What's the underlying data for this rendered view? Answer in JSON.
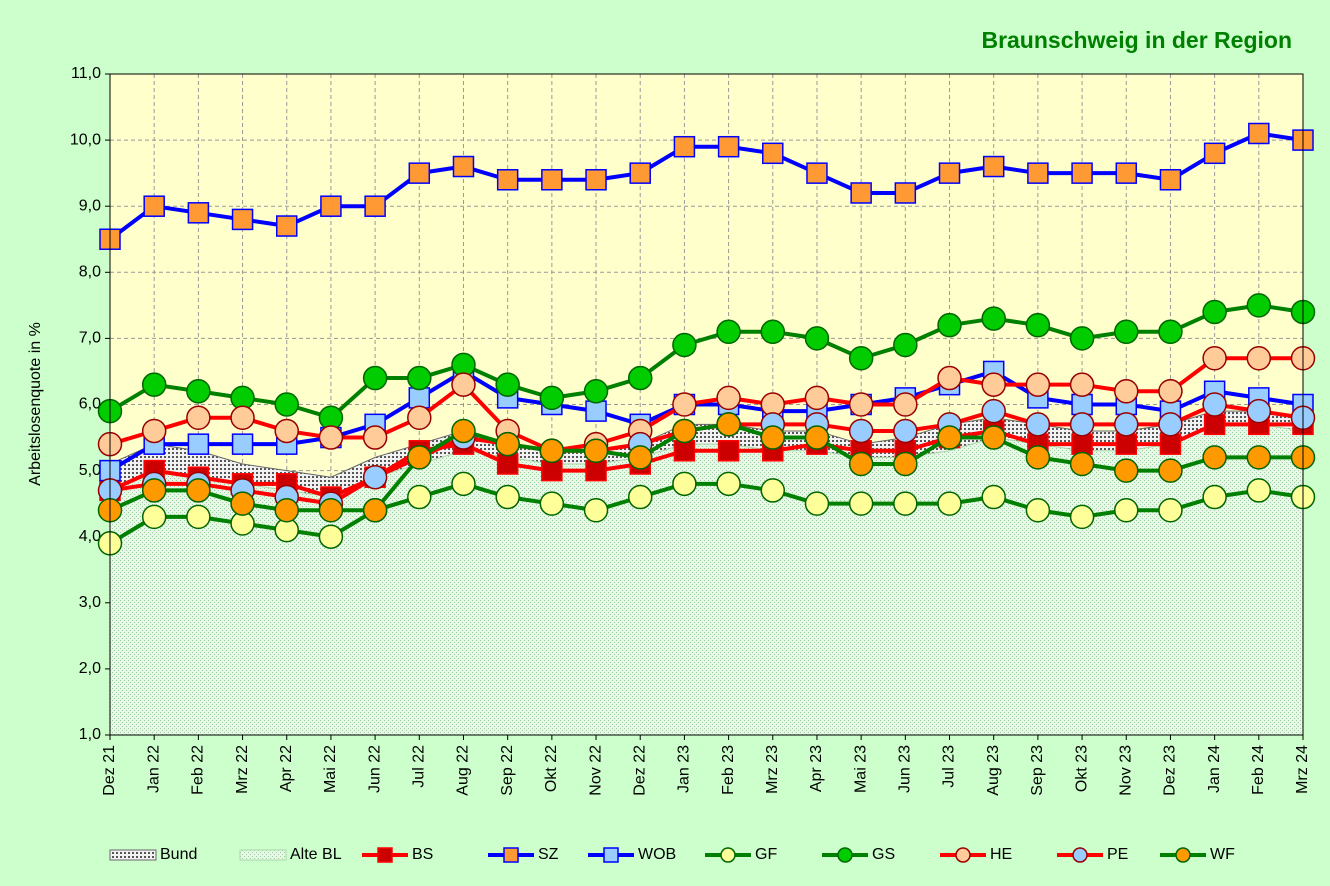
{
  "chart_data": {
    "type": "line",
    "title": "Braunschweig in der Region",
    "ylabel": "Arbeitslosenquote in %",
    "categories": [
      "Dez 21",
      "Jan 22",
      "Feb 22",
      "Mrz 22",
      "Apr 22",
      "Mai 22",
      "Jun 22",
      "Jul 22",
      "Aug 22",
      "Sep 22",
      "Okt 22",
      "Nov 22",
      "Dez 22",
      "Jan 23",
      "Feb 23",
      "Mrz 23",
      "Apr 23",
      "Mai 23",
      "Jun 23",
      "Jul 23",
      "Aug 23",
      "Sep 23",
      "Okt 23",
      "Nov 23",
      "Dez 23",
      "Jan 24",
      "Feb 24",
      "Mrz 24"
    ],
    "ylim": [
      1,
      11
    ],
    "yticks": [
      {
        "value": 1,
        "label": "1,0"
      },
      {
        "value": 2,
        "label": "2,0"
      },
      {
        "value": 3,
        "label": "3,0"
      },
      {
        "value": 4,
        "label": "4,0"
      },
      {
        "value": 5,
        "label": "5,0"
      },
      {
        "value": 6,
        "label": "6,0"
      },
      {
        "value": 7,
        "label": "7,0"
      },
      {
        "value": 8,
        "label": "8,0"
      },
      {
        "value": 9,
        "label": "9,0"
      },
      {
        "value": 10,
        "label": "10,0"
      },
      {
        "value": 11,
        "label": "11,0"
      }
    ],
    "grid": true,
    "legend": "bottom",
    "series": [
      {
        "name": "Bund",
        "kind": "area",
        "color": "#666666",
        "values": [
          5.1,
          5.4,
          5.3,
          5.1,
          5.0,
          4.9,
          5.2,
          5.4,
          5.6,
          5.4,
          5.3,
          5.3,
          5.4,
          5.7,
          5.7,
          5.6,
          5.6,
          5.4,
          5.5,
          5.7,
          5.8,
          5.7,
          5.6,
          5.6,
          5.7,
          5.9,
          5.9,
          5.8
        ]
      },
      {
        "name": "Alte BL",
        "kind": "area",
        "color": "#a8d8a8",
        "values": [
          4.7,
          5.0,
          4.9,
          4.8,
          4.7,
          4.6,
          4.9,
          5.1,
          5.3,
          5.2,
          5.1,
          5.1,
          5.2,
          5.4,
          5.4,
          5.3,
          5.3,
          5.2,
          5.2,
          5.3,
          5.5,
          5.4,
          5.3,
          5.3,
          5.4,
          5.7,
          5.7,
          5.6
        ]
      },
      {
        "name": "BS",
        "kind": "line",
        "marker": "square",
        "color": "#ff0000",
        "marker_color": "#cc0000",
        "values": [
          4.7,
          5.0,
          4.9,
          4.8,
          4.8,
          4.6,
          4.9,
          5.3,
          5.4,
          5.1,
          5.0,
          5.0,
          5.1,
          5.3,
          5.3,
          5.3,
          5.4,
          5.3,
          5.3,
          5.5,
          5.6,
          5.4,
          5.4,
          5.4,
          5.4,
          5.7,
          5.7,
          5.7
        ]
      },
      {
        "name": "SZ",
        "kind": "line",
        "marker": "square",
        "color": "#0000ff",
        "marker_color": "#ff9933",
        "values": [
          8.5,
          9.0,
          8.9,
          8.8,
          8.7,
          9.0,
          9.0,
          9.5,
          9.6,
          9.4,
          9.4,
          9.4,
          9.5,
          9.9,
          9.9,
          9.8,
          9.5,
          9.2,
          9.2,
          9.5,
          9.6,
          9.5,
          9.5,
          9.5,
          9.4,
          9.8,
          10.1,
          10.0
        ]
      },
      {
        "name": "WOB",
        "kind": "line",
        "marker": "square",
        "color": "#0000ff",
        "marker_color": "#99ccff",
        "values": [
          5.0,
          5.4,
          5.4,
          5.4,
          5.4,
          5.5,
          5.7,
          6.1,
          6.5,
          6.1,
          6.0,
          5.9,
          5.7,
          6.0,
          6.0,
          5.9,
          5.9,
          6.0,
          6.1,
          6.3,
          6.5,
          6.1,
          6.0,
          6.0,
          5.9,
          6.2,
          6.1,
          6.0
        ]
      },
      {
        "name": "GF",
        "kind": "line",
        "marker": "circle",
        "color": "#008000",
        "marker_color": "#ffff99",
        "values": [
          3.9,
          4.3,
          4.3,
          4.2,
          4.1,
          4.0,
          4.4,
          4.6,
          4.8,
          4.6,
          4.5,
          4.4,
          4.6,
          4.8,
          4.8,
          4.7,
          4.5,
          4.5,
          4.5,
          4.5,
          4.6,
          4.4,
          4.3,
          4.4,
          4.4,
          4.6,
          4.7,
          4.6
        ]
      },
      {
        "name": "GS",
        "kind": "line",
        "marker": "circle",
        "color": "#008000",
        "marker_color": "#00cc00",
        "values": [
          5.9,
          6.3,
          6.2,
          6.1,
          6.0,
          5.8,
          6.4,
          6.4,
          6.6,
          6.3,
          6.1,
          6.2,
          6.4,
          6.9,
          7.1,
          7.1,
          7.0,
          6.7,
          6.9,
          7.2,
          7.3,
          7.2,
          7.0,
          7.1,
          7.1,
          7.4,
          7.5,
          7.4
        ]
      },
      {
        "name": "HE",
        "kind": "line",
        "marker": "circle",
        "color": "#ff0000",
        "marker_color": "#ffcc99",
        "values": [
          5.4,
          5.6,
          5.8,
          5.8,
          5.6,
          5.5,
          5.5,
          5.8,
          6.3,
          5.6,
          5.3,
          5.4,
          5.6,
          6.0,
          6.1,
          6.0,
          6.1,
          6.0,
          6.0,
          6.4,
          6.3,
          6.3,
          6.3,
          6.2,
          6.2,
          6.7,
          6.7,
          6.7
        ]
      },
      {
        "name": "PE",
        "kind": "line",
        "marker": "circle",
        "color": "#ff0000",
        "marker_color": "#99ccff",
        "values": [
          4.7,
          4.8,
          4.8,
          4.7,
          4.6,
          4.5,
          4.9,
          5.2,
          5.5,
          5.4,
          5.3,
          5.3,
          5.4,
          5.6,
          5.7,
          5.7,
          5.7,
          5.6,
          5.6,
          5.7,
          5.9,
          5.7,
          5.7,
          5.7,
          5.7,
          6.0,
          5.9,
          5.8
        ]
      },
      {
        "name": "WF",
        "kind": "line",
        "marker": "circle",
        "color": "#008000",
        "marker_color": "#ff9900",
        "values": [
          4.4,
          4.7,
          4.7,
          4.5,
          4.4,
          4.4,
          4.4,
          5.2,
          5.6,
          5.4,
          5.3,
          5.3,
          5.2,
          5.6,
          5.7,
          5.5,
          5.5,
          5.1,
          5.1,
          5.5,
          5.5,
          5.2,
          5.1,
          5.0,
          5.0,
          5.2,
          5.2,
          5.2
        ]
      }
    ]
  }
}
